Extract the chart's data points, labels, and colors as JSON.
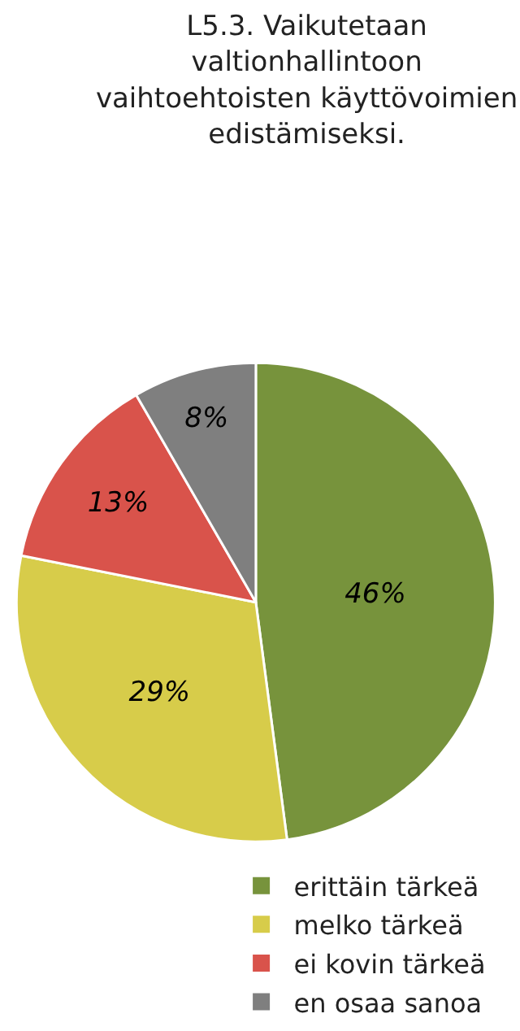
{
  "chart_data": {
    "type": "pie",
    "title": "L5.3. Vaikutetaan valtionhallintoon vaihtoehtoisten käyttövoimien edistämiseksi.",
    "categories": [
      "erittäin tärkeä",
      "melko tärkeä",
      "ei kovin tärkeä",
      "en osaa sanoa"
    ],
    "values": [
      46,
      29,
      13,
      8
    ],
    "value_labels": [
      "46%",
      "29%",
      "13%",
      "8%"
    ],
    "colors": [
      "#77933c",
      "#d7cc4a",
      "#d9534b",
      "#7f7f7f"
    ],
    "legend": "bottom right"
  }
}
